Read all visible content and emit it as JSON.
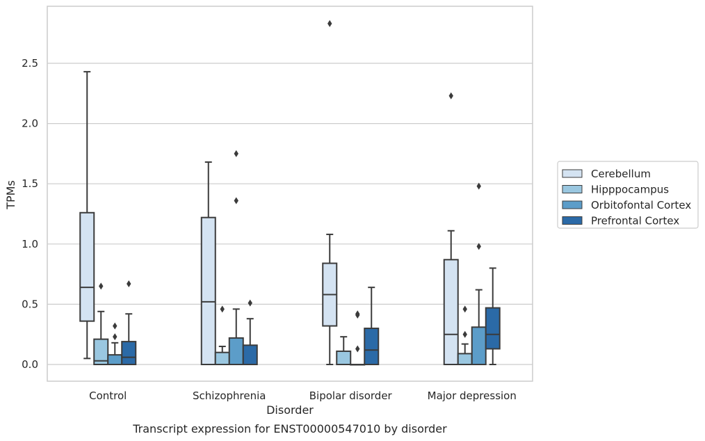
{
  "chart_data": {
    "type": "box",
    "title": "",
    "caption": "Transcript expression for ENST00000547010 by disorder",
    "xlabel": "Disorder",
    "ylabel": "TPMs",
    "ylim": [
      -0.14,
      2.98
    ],
    "yticks": [
      0.0,
      0.5,
      1.0,
      1.5,
      2.0,
      2.5
    ],
    "ytick_labels": [
      "0.0",
      "0.5",
      "1.0",
      "1.5",
      "2.0",
      "2.5"
    ],
    "grid": "horizontal",
    "legend_position": "right",
    "categories": [
      "Control",
      "Schizophrenia",
      "Bipolar disorder",
      "Major depression"
    ],
    "series": [
      {
        "name": "Cerebellum",
        "color": "#d4e3f2",
        "boxes": [
          {
            "whislo": 0.05,
            "q1": 0.36,
            "med": 0.64,
            "q3": 1.26,
            "whishi": 2.43,
            "fliers": []
          },
          {
            "whislo": 0.0,
            "q1": 0.0,
            "med": 0.52,
            "q3": 1.22,
            "whishi": 1.68,
            "fliers": []
          },
          {
            "whislo": 0.0,
            "q1": 0.32,
            "med": 0.58,
            "q3": 0.84,
            "whishi": 1.08,
            "fliers": [
              2.83
            ]
          },
          {
            "whislo": 0.0,
            "q1": 0.0,
            "med": 0.25,
            "q3": 0.87,
            "whishi": 1.11,
            "fliers": [
              2.23
            ]
          }
        ]
      },
      {
        "name": "Hipppocampus",
        "color": "#9ac7e0",
        "boxes": [
          {
            "whislo": 0.0,
            "q1": 0.0,
            "med": 0.03,
            "q3": 0.21,
            "whishi": 0.44,
            "fliers": [
              0.65
            ]
          },
          {
            "whislo": 0.0,
            "q1": 0.0,
            "med": 0.0,
            "q3": 0.1,
            "whishi": 0.15,
            "fliers": [
              0.46
            ]
          },
          {
            "whislo": 0.0,
            "q1": 0.0,
            "med": 0.0,
            "q3": 0.11,
            "whishi": 0.23,
            "fliers": []
          },
          {
            "whislo": 0.0,
            "q1": 0.0,
            "med": 0.0,
            "q3": 0.09,
            "whishi": 0.17,
            "fliers": [
              0.46,
              0.25
            ]
          }
        ]
      },
      {
        "name": "Orbitofontal Cortex",
        "color": "#5c9dc9",
        "boxes": [
          {
            "whislo": 0.0,
            "q1": 0.0,
            "med": 0.0,
            "q3": 0.08,
            "whishi": 0.18,
            "fliers": [
              0.32,
              0.23
            ]
          },
          {
            "whislo": 0.0,
            "q1": 0.0,
            "med": 0.0,
            "q3": 0.22,
            "whishi": 0.46,
            "fliers": [
              1.75,
              1.36
            ]
          },
          {
            "whislo": 0.0,
            "q1": 0.0,
            "med": 0.0,
            "q3": 0.0,
            "whishi": 0.0,
            "fliers": [
              0.42,
              0.41,
              0.13
            ]
          },
          {
            "whislo": 0.0,
            "q1": 0.0,
            "med": 0.0,
            "q3": 0.31,
            "whishi": 0.62,
            "fliers": [
              1.48,
              0.98
            ]
          }
        ]
      },
      {
        "name": "Prefrontal Cortex",
        "color": "#2b6aa7",
        "boxes": [
          {
            "whislo": 0.0,
            "q1": 0.0,
            "med": 0.06,
            "q3": 0.19,
            "whishi": 0.42,
            "fliers": [
              0.67
            ]
          },
          {
            "whislo": 0.0,
            "q1": 0.0,
            "med": 0.0,
            "q3": 0.16,
            "whishi": 0.38,
            "fliers": [
              0.51
            ]
          },
          {
            "whislo": 0.0,
            "q1": 0.0,
            "med": 0.12,
            "q3": 0.3,
            "whishi": 0.64,
            "fliers": []
          },
          {
            "whislo": 0.0,
            "q1": 0.13,
            "med": 0.25,
            "q3": 0.47,
            "whishi": 0.8,
            "fliers": []
          }
        ]
      }
    ]
  }
}
